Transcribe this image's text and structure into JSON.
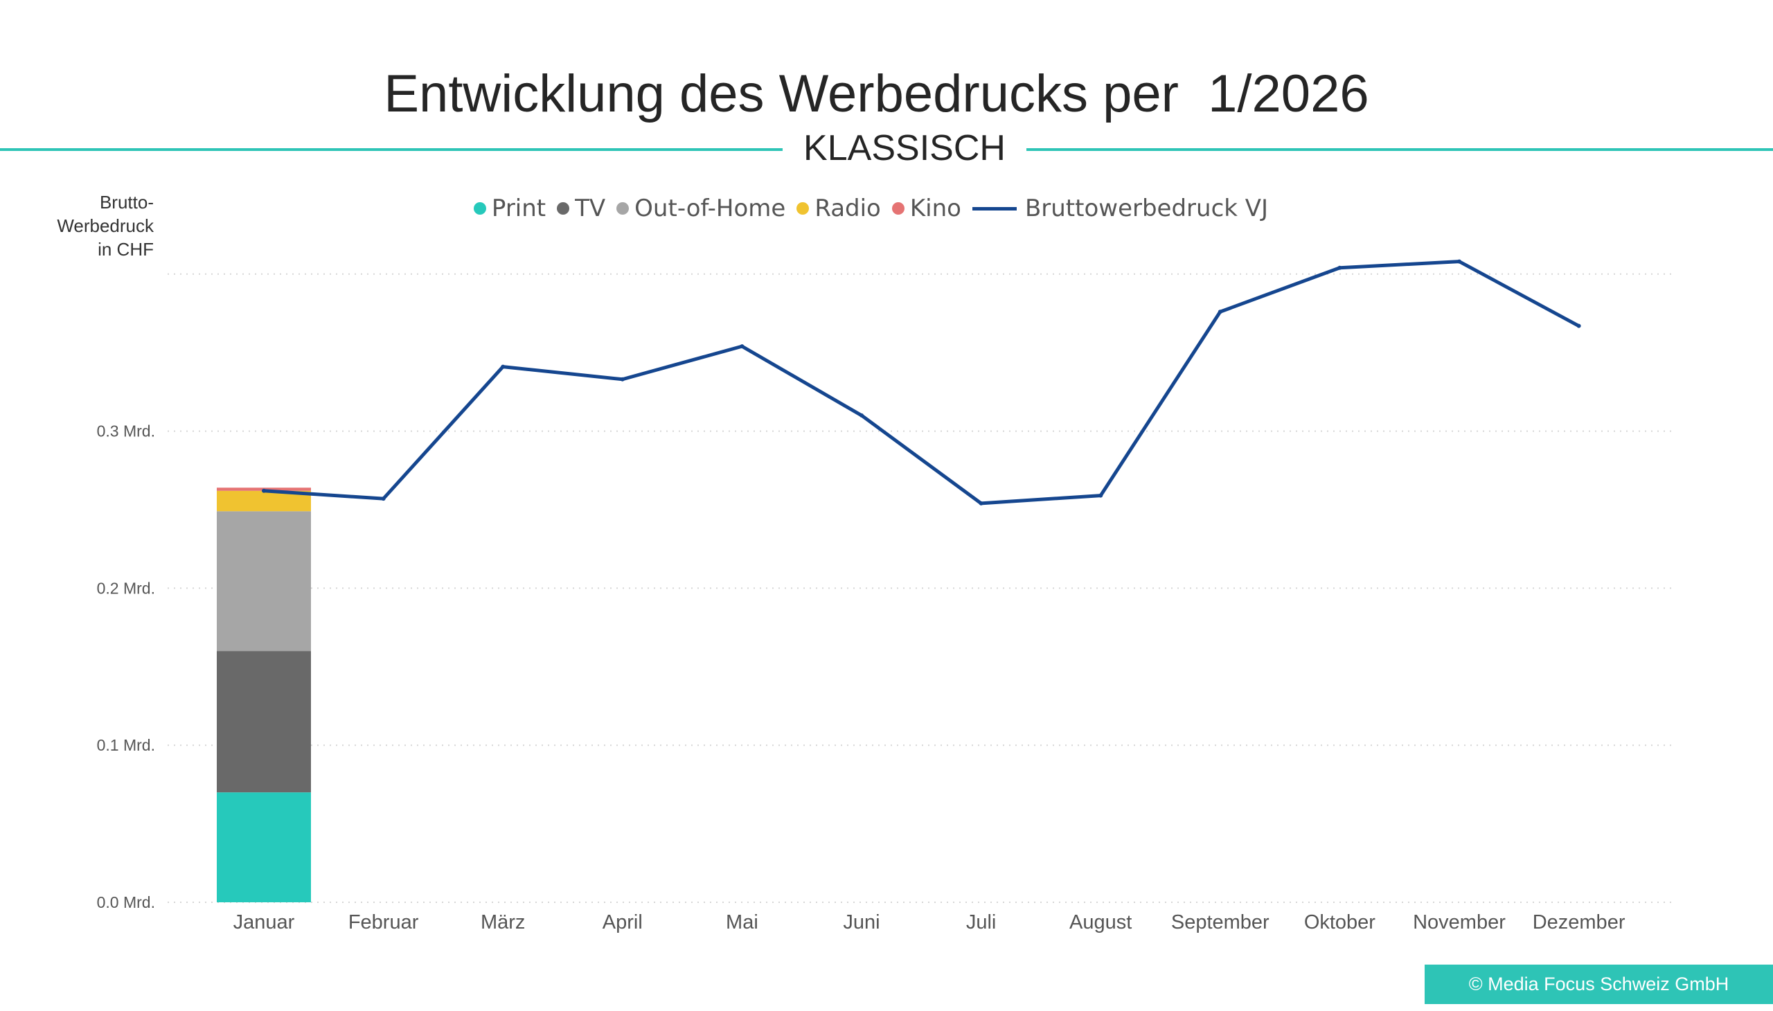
{
  "title": "Entwicklung des Werbedrucks per  1/2026",
  "subtitle": "KLASSISCH",
  "ylabel": "Brutto-\nWerbedruck\nin CHF",
  "copyright": "© Media Focus Schweiz GmbH",
  "colors": {
    "accent": "#2ec4b6",
    "print": "#26c9bb",
    "tv": "#696969",
    "out_of_home": "#a6a6a6",
    "radio": "#f0c330",
    "kino": "#e57373",
    "vj_line": "#15468f",
    "grid": "#d6d6d6"
  },
  "legend": [
    {
      "label": "Print",
      "marker": "dot",
      "color": "#26c9bb"
    },
    {
      "label": "TV",
      "marker": "dot",
      "color": "#696969"
    },
    {
      "label": "Out-of-Home",
      "marker": "dot",
      "color": "#a6a6a6"
    },
    {
      "label": "Radio",
      "marker": "dot",
      "color": "#f0c330"
    },
    {
      "label": "Kino",
      "marker": "dot",
      "color": "#e57373"
    },
    {
      "label": "Bruttowerbedruck VJ",
      "marker": "line",
      "color": "#15468f"
    }
  ],
  "chart_data": {
    "type": "bar",
    "stacked": true,
    "title": "Entwicklung des Werbedrucks per  1/2026",
    "subtitle": "KLASSISCH",
    "ylabel": "Brutto-Werbedruck in CHF",
    "ylim": [
      0,
      0.4
    ],
    "yticks": [
      0.0,
      0.1,
      0.2,
      0.3
    ],
    "ytick_labels": [
      "0.0 Mrd.",
      "0.1 Mrd.",
      "0.2 Mrd.",
      "0.3 Mrd."
    ],
    "grid": true,
    "legend_position": "top-center",
    "categories": [
      "Januar",
      "Februar",
      "März",
      "April",
      "Mai",
      "Juni",
      "Juli",
      "August",
      "September",
      "Oktober",
      "November",
      "Dezember"
    ],
    "series": [
      {
        "name": "Print",
        "type": "bar",
        "color": "#26c9bb",
        "values": [
          0.07,
          null,
          null,
          null,
          null,
          null,
          null,
          null,
          null,
          null,
          null,
          null
        ]
      },
      {
        "name": "TV",
        "type": "bar",
        "color": "#696969",
        "values": [
          0.09,
          null,
          null,
          null,
          null,
          null,
          null,
          null,
          null,
          null,
          null,
          null
        ]
      },
      {
        "name": "Out-of-Home",
        "type": "bar",
        "color": "#a6a6a6",
        "values": [
          0.089,
          null,
          null,
          null,
          null,
          null,
          null,
          null,
          null,
          null,
          null,
          null
        ]
      },
      {
        "name": "Radio",
        "type": "bar",
        "color": "#f0c330",
        "values": [
          0.013,
          null,
          null,
          null,
          null,
          null,
          null,
          null,
          null,
          null,
          null,
          null
        ]
      },
      {
        "name": "Kino",
        "type": "bar",
        "color": "#e57373",
        "values": [
          0.002,
          null,
          null,
          null,
          null,
          null,
          null,
          null,
          null,
          null,
          null,
          null
        ]
      },
      {
        "name": "Bruttowerbedruck VJ",
        "type": "line",
        "color": "#15468f",
        "values": [
          0.262,
          0.257,
          0.341,
          0.333,
          0.354,
          0.31,
          0.254,
          0.259,
          0.376,
          0.404,
          0.408,
          0.367
        ]
      }
    ]
  }
}
